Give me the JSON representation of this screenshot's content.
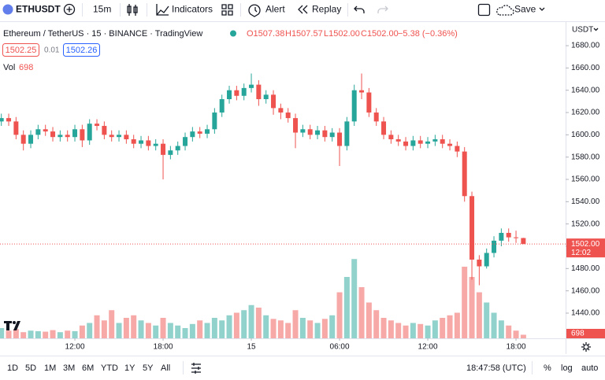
{
  "toolbar": {
    "symbol": "ETHUSDT",
    "interval": "15m",
    "indicators": "Indicators",
    "alert": "Alert",
    "replay": "Replay",
    "save": "Save"
  },
  "legend": {
    "title": "Ethereum / TetherUS · 15 · BINANCE · TradingView",
    "open": "O1507.38",
    "high": "H1507.57",
    "low": "L1502.00",
    "close": "C1502.00",
    "change": "−5.38 (−0.36%)",
    "bid": "1502.25",
    "spread": "0.01",
    "ask": "1502.26",
    "volume_label": "Vol"
  },
  "chart_data": {
    "type": "candlestick",
    "currency": "USDT",
    "open": [
      1612,
      1615,
      1612,
      1600,
      1592,
      1600,
      1605,
      1603,
      1598,
      1600,
      1598,
      1605,
      1595,
      1610,
      1608,
      1600,
      1598,
      1600,
      1596,
      1592,
      1595,
      1590,
      1592,
      1582,
      1586,
      1590,
      1598,
      1603,
      1601,
      1605,
      1620,
      1632,
      1640,
      1635,
      1642,
      1645,
      1632,
      1636,
      1624,
      1620,
      1615,
      1602,
      1605,
      1600,
      1604,
      1598,
      1602,
      1590,
      1612,
      1640,
      1638,
      1620,
      1612,
      1600,
      1596,
      1594,
      1590,
      1595,
      1592,
      1594,
      1596,
      1592,
      1590,
      1585,
      1545,
      1488,
      1482,
      1494,
      1505,
      1512,
      1508,
      1507.38
    ],
    "high": [
      1619,
      1619,
      1616,
      1604,
      1604,
      1609,
      1609,
      1607,
      1604,
      1604,
      1609,
      1609,
      1614,
      1614,
      1612,
      1604,
      1604,
      1604,
      1600,
      1599,
      1599,
      1596,
      1596,
      1590,
      1594,
      1602,
      1607,
      1607,
      1609,
      1624,
      1636,
      1644,
      1644,
      1646,
      1655,
      1649,
      1640,
      1640,
      1628,
      1624,
      1619,
      1609,
      1609,
      1608,
      1608,
      1606,
      1606,
      1616,
      1645,
      1655,
      1642,
      1624,
      1616,
      1604,
      1600,
      1598,
      1599,
      1599,
      1598,
      1600,
      1600,
      1596,
      1594,
      1589,
      1549,
      1492,
      1498,
      1509,
      1516,
      1516,
      1514,
      1507.57
    ],
    "low": [
      1608,
      1608,
      1596,
      1586,
      1588,
      1596,
      1599,
      1594,
      1594,
      1594,
      1594,
      1589,
      1591,
      1604,
      1596,
      1594,
      1594,
      1592,
      1588,
      1588,
      1586,
      1586,
      1560,
      1578,
      1582,
      1586,
      1594,
      1597,
      1597,
      1601,
      1616,
      1628,
      1631,
      1631,
      1638,
      1626,
      1628,
      1618,
      1614,
      1611,
      1588,
      1598,
      1596,
      1596,
      1594,
      1594,
      1572,
      1586,
      1608,
      1632,
      1616,
      1608,
      1596,
      1592,
      1590,
      1586,
      1586,
      1588,
      1588,
      1590,
      1588,
      1586,
      1580,
      1540,
      1470,
      1465,
      1480,
      1490,
      1500,
      1504,
      1503,
      1502
    ],
    "close": [
      1615,
      1612,
      1600,
      1592,
      1600,
      1605,
      1603,
      1598,
      1600,
      1598,
      1605,
      1595,
      1610,
      1608,
      1600,
      1598,
      1600,
      1596,
      1592,
      1595,
      1590,
      1592,
      1582,
      1586,
      1590,
      1598,
      1603,
      1601,
      1605,
      1620,
      1632,
      1640,
      1635,
      1642,
      1645,
      1632,
      1636,
      1624,
      1620,
      1615,
      1602,
      1605,
      1600,
      1604,
      1598,
      1602,
      1590,
      1612,
      1640,
      1638,
      1620,
      1612,
      1600,
      1596,
      1594,
      1590,
      1595,
      1592,
      1594,
      1596,
      1592,
      1590,
      1585,
      1545,
      1488,
      1482,
      1494,
      1505,
      1512,
      1508,
      1507.38,
      1502
    ],
    "volume": [
      2000,
      1500,
      1800,
      1200,
      1500,
      1400,
      1300,
      1600,
      1200,
      1500,
      1400,
      2500,
      3000,
      4500,
      3500,
      5500,
      3000,
      4000,
      4500,
      3500,
      3000,
      2500,
      4000,
      3000,
      2500,
      2000,
      2800,
      3500,
      3000,
      4000,
      3500,
      4500,
      5000,
      5500,
      6500,
      6000,
      4500,
      3800,
      3500,
      3000,
      5500,
      4000,
      3500,
      3000,
      3800,
      4500,
      9000,
      12000,
      15500,
      10000,
      7000,
      5500,
      4000,
      3500,
      3000,
      2500,
      3000,
      2800,
      2500,
      3500,
      4000,
      4500,
      5000,
      14000,
      12000,
      9000,
      7000,
      5000,
      3500,
      2500,
      1500,
      698
    ],
    "up_color": "#26a69a",
    "down_color": "#ef5350",
    "ylim": [
      1417.4,
      1699.8
    ],
    "yticks": [
      {
        "value": 1440,
        "label": "1440.00"
      },
      {
        "value": 1460,
        "label": "1460.00"
      },
      {
        "value": 1480,
        "label": "1480.00"
      },
      {
        "value": 1500,
        "label": "1500.00"
      },
      {
        "value": 1520,
        "label": "1520.00"
      },
      {
        "value": 1540,
        "label": "1540.00"
      },
      {
        "value": 1560,
        "label": "1560.00"
      },
      {
        "value": 1580,
        "label": "1580.00"
      },
      {
        "value": 1600,
        "label": "1600.00"
      },
      {
        "value": 1620,
        "label": "1620.00"
      },
      {
        "value": 1640,
        "label": "1640.00"
      },
      {
        "value": 1660,
        "label": "1660.00"
      },
      {
        "value": 1680,
        "label": "1680.00"
      }
    ],
    "xticks": [
      {
        "value": 10,
        "label": "12:00"
      },
      {
        "value": 22,
        "label": "18:00"
      },
      {
        "value": 34,
        "label": "15"
      },
      {
        "value": 46,
        "label": "06:00"
      },
      {
        "value": 58,
        "label": "12:00"
      },
      {
        "value": 70,
        "label": "18:00"
      }
    ],
    "volume_ylim": [
      0,
      20000
    ],
    "grid": false,
    "last_price": {
      "value": 1502,
      "label": "1502.00"
    },
    "countdown": "12:02"
  },
  "bottom": {
    "ranges": [
      "1D",
      "5D",
      "1M",
      "3M",
      "6M",
      "YTD",
      "1Y",
      "5Y",
      "All"
    ],
    "time": "18:47:58 (UTC)",
    "percent": "%",
    "log": "log",
    "auto": "auto"
  }
}
